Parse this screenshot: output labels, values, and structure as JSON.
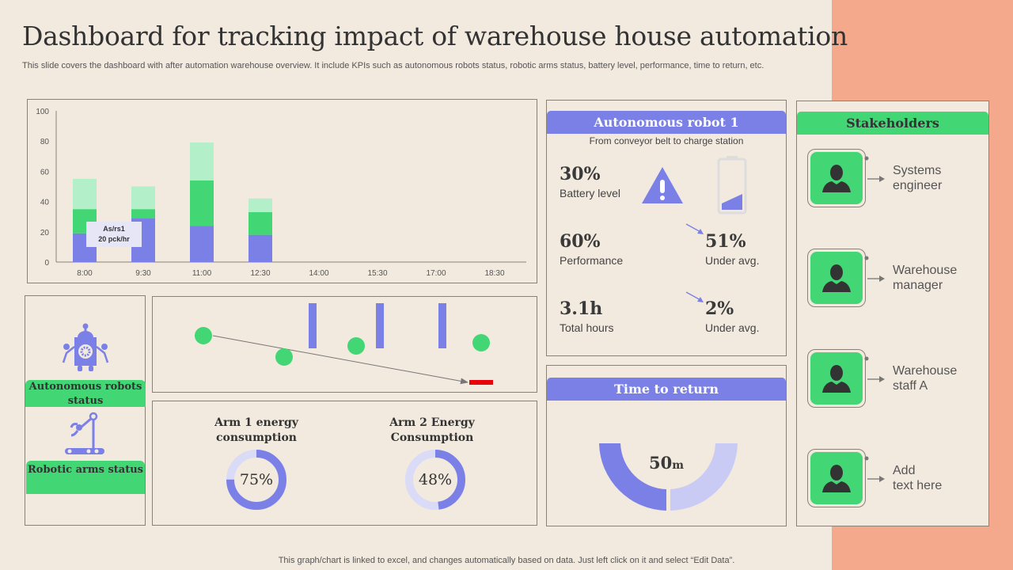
{
  "title": "Dashboard for tracking impact of warehouse house automation",
  "subtitle": "This slide covers the dashboard with after automation warehouse overview. It include KPIs such as autonomous robots status, robotic arms status, battery level, performance, time to return, etc.",
  "colors": {
    "blue": "#7b80e6",
    "green": "#43d675",
    "light_green": "#b3efc8",
    "light_blue": "#d9dbf7",
    "red": "#e8000b",
    "accent_strip": "#f4a98c"
  },
  "chart_data": {
    "type": "bar",
    "stacked": true,
    "categories": [
      "8:00",
      "9:30",
      "11:00",
      "12:30",
      "14:00",
      "15:30",
      "17:00",
      "18:30"
    ],
    "series": [
      {
        "values": [
          19,
          29,
          24,
          18,
          null,
          null,
          null,
          null
        ],
        "color": "#7b80e6"
      },
      {
        "values": [
          16,
          6,
          30,
          15,
          null,
          null,
          null,
          null
        ],
        "color": "#43d675"
      },
      {
        "values": [
          20,
          15,
          25,
          9,
          null,
          null,
          null,
          null
        ],
        "color": "#b3efc8"
      }
    ],
    "yticks": [
      0,
      20,
      40,
      60,
      80,
      100
    ],
    "ylim": [
      0,
      100
    ],
    "grid": false,
    "annotation": {
      "line1": "As/rs1",
      "line2": "20 pck/hr"
    }
  },
  "status": {
    "robots_label": "Autonomous robots status",
    "arms_label": "Robotic arms status",
    "robot_icon": "robot-icon",
    "arm_icon": "robotic-arm-icon"
  },
  "energy": [
    {
      "title1": "Arm 1 energy",
      "title2": "consumption",
      "value": 75,
      "label": "75%"
    },
    {
      "title1": "Arm 2 Energy",
      "title2": "Consumption",
      "value": 48,
      "label": "48%"
    }
  ],
  "robot": {
    "header": "Autonomous robot 1",
    "route": "From conveyor belt to charge station",
    "battery_value": "30%",
    "battery_label": "Battery level",
    "battery_level": 30,
    "performance_value": "60%",
    "performance_label": "Performance",
    "perf_delta": "51%",
    "perf_delta_label": "Under avg.",
    "hours_value": "3.1h",
    "hours_label": "Total hours",
    "hours_delta": "2%",
    "hours_delta_label": "Under avg."
  },
  "time_to_return": {
    "header": "Time to return",
    "value": "50",
    "unit": "m"
  },
  "stakeholders": {
    "header": "Stakeholders",
    "items": [
      {
        "line1": "Systems",
        "line2": "engineer"
      },
      {
        "line1": "Warehouse",
        "line2": "manager"
      },
      {
        "line1": "Warehouse",
        "line2": "staff A"
      },
      {
        "line1": "Add",
        "line2": "text here"
      }
    ]
  },
  "footer": "This graph/chart is linked to excel,  and changes automatically based on data. Just left click on it and select “Edit Data”."
}
